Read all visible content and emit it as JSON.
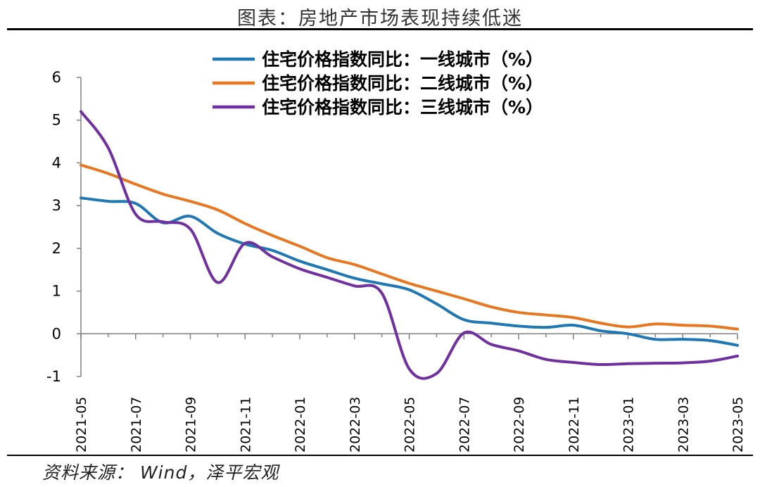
{
  "header": {
    "title": "图表：房地产市场表现持续低迷"
  },
  "footer": {
    "source": "资料来源： Wind，泽平宏观"
  },
  "chart_data": {
    "type": "line",
    "title": "图表：房地产市场表现持续低迷",
    "xlabel": "",
    "ylabel": "",
    "ylim": [
      -1,
      6
    ],
    "yticks": [
      "6",
      "5",
      "4",
      "3",
      "2",
      "1",
      "0",
      "-1"
    ],
    "ytick_values": [
      6,
      5,
      4,
      3,
      2,
      1,
      0,
      -1
    ],
    "x": [
      "2021-05",
      "2021-06",
      "2021-07",
      "2021-08",
      "2021-09",
      "2021-10",
      "2021-11",
      "2021-12",
      "2022-01",
      "2022-02",
      "2022-03",
      "2022-04",
      "2022-05",
      "2022-06",
      "2022-07",
      "2022-08",
      "2022-09",
      "2022-10",
      "2022-11",
      "2022-12",
      "2023-01",
      "2023-02",
      "2023-03",
      "2023-04",
      "2023-05"
    ],
    "xtick_labels": [
      "2021-05",
      "2021-07",
      "2021-09",
      "2021-11",
      "2022-01",
      "2022-03",
      "2022-05",
      "2022-07",
      "2022-09",
      "2022-11",
      "2023-01",
      "2023-03",
      "2023-05"
    ],
    "xtick_indices": [
      0,
      2,
      4,
      6,
      8,
      10,
      12,
      14,
      16,
      18,
      20,
      22,
      24
    ],
    "grid": false,
    "legend_position": "top-right",
    "series": [
      {
        "name": "住宅价格指数同比：一线城市（%）",
        "color": "#1F77B4",
        "values": [
          3.18,
          3.1,
          3.05,
          2.6,
          2.75,
          2.35,
          2.1,
          1.95,
          1.7,
          1.5,
          1.3,
          1.17,
          1.03,
          0.7,
          0.33,
          0.25,
          0.18,
          0.15,
          0.2,
          0.07,
          0.0,
          -0.13,
          -0.13,
          -0.16,
          -0.27
        ]
      },
      {
        "name": "住宅价格指数同比：二线城市（%）",
        "color": "#E87722",
        "values": [
          3.95,
          3.75,
          3.5,
          3.27,
          3.1,
          2.9,
          2.58,
          2.3,
          2.05,
          1.78,
          1.62,
          1.4,
          1.18,
          1.0,
          0.82,
          0.63,
          0.5,
          0.44,
          0.38,
          0.25,
          0.16,
          0.23,
          0.2,
          0.18,
          0.11
        ]
      },
      {
        "name": "住宅价格指数同比：三线城市（%）",
        "color": "#7030A0",
        "values": [
          5.2,
          4.35,
          2.8,
          2.62,
          2.45,
          1.2,
          2.12,
          1.8,
          1.52,
          1.32,
          1.12,
          0.95,
          -0.82,
          -0.93,
          0.02,
          -0.25,
          -0.4,
          -0.6,
          -0.67,
          -0.72,
          -0.7,
          -0.69,
          -0.68,
          -0.64,
          -0.52
        ]
      }
    ]
  }
}
